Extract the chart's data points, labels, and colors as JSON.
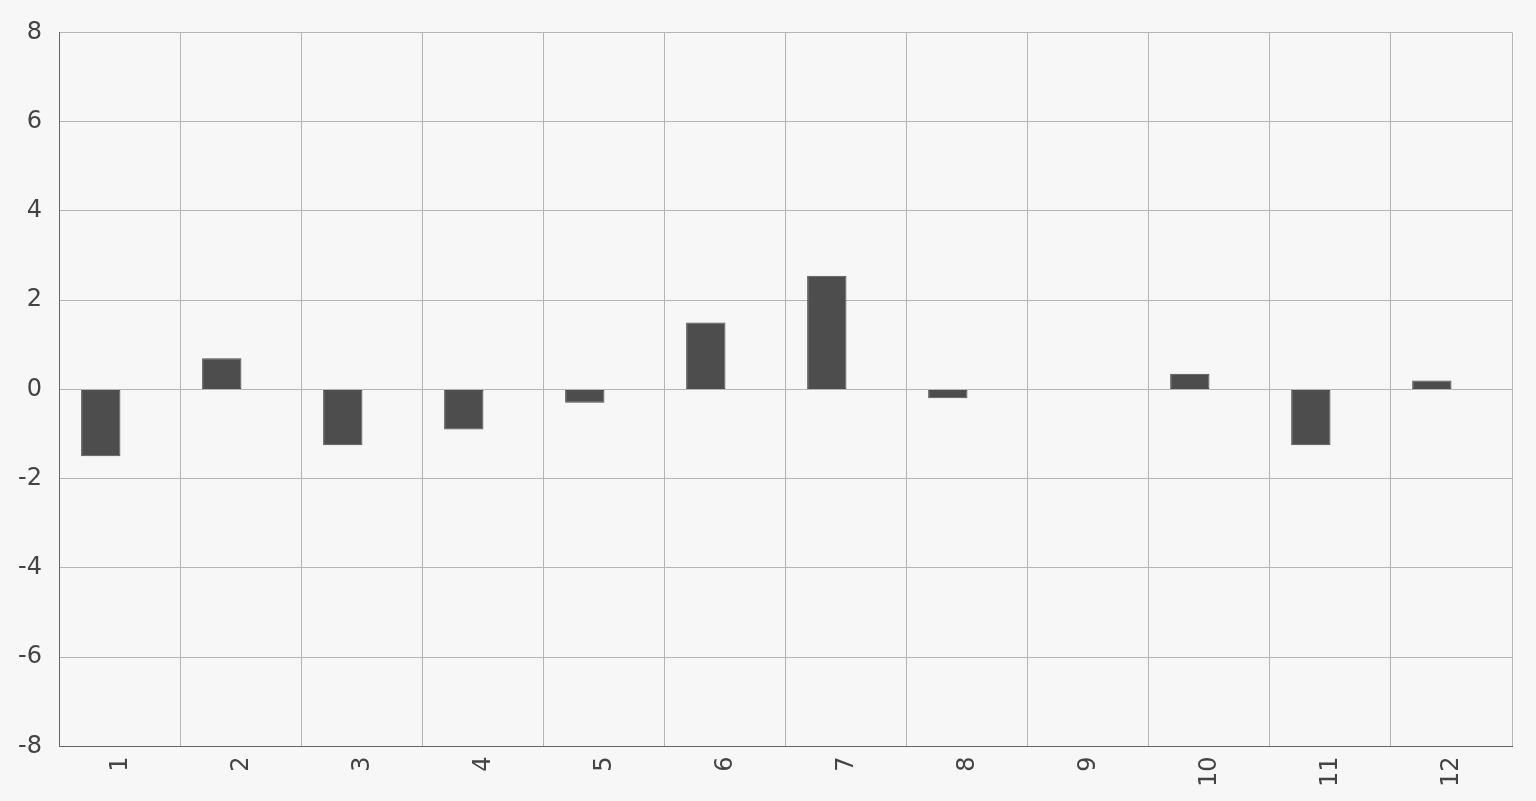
{
  "chart_data": {
    "type": "bar",
    "categories": [
      "1",
      "2",
      "3",
      "4",
      "5",
      "6",
      "7",
      "8",
      "9",
      "10",
      "11",
      "12"
    ],
    "series": [
      {
        "color": "#4d4d4d",
        "values": [
          -1.5,
          0.7,
          -1.25,
          -0.9,
          -0.3,
          1.5,
          2.55,
          -0.2,
          0,
          0.35,
          -1.25,
          0.2
        ]
      },
      {
        "color": "#4d4d4d",
        "values": [
          0,
          0,
          0,
          0,
          0,
          0,
          0,
          0,
          0,
          0,
          0,
          0
        ]
      }
    ],
    "ylim": [
      -8,
      8
    ],
    "yticks": [
      -8,
      -6,
      -4,
      -2,
      0,
      2,
      4,
      6,
      8
    ],
    "grid": true,
    "legend": false
  }
}
